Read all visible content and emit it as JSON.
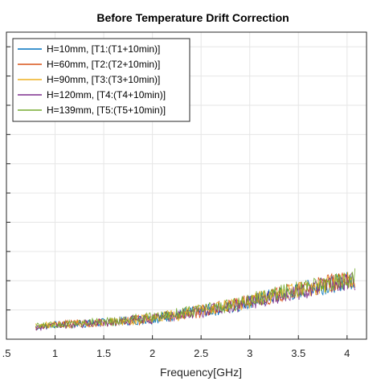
{
  "chart_data": {
    "type": "line",
    "title": "Before Temperature Drift Correction",
    "xlabel": "Frequency[GHz]",
    "ylabel": "",
    "xlim": [
      0.5,
      4.2
    ],
    "ylim": [
      0,
      10.5
    ],
    "xticks": [
      ".5",
      "1",
      "1.5",
      "2",
      "2.5",
      "3",
      "3.5",
      "4"
    ],
    "xtick_values": [
      0.5,
      1,
      1.5,
      2,
      2.5,
      3,
      3.5,
      4
    ],
    "ytick_values": [
      1,
      2,
      3,
      4,
      5,
      6,
      7,
      8,
      9,
      10
    ],
    "grid": true,
    "legend_placement": "top-left",
    "series": [
      {
        "name": "H=10mm, [T1:(T1+10min)]",
        "color": "#0072bd",
        "x": [
          0.8,
          1.0,
          1.2,
          1.4,
          1.6,
          1.8,
          2.0,
          2.2,
          2.4,
          2.6,
          2.8,
          3.0,
          3.2,
          3.4,
          3.6,
          3.8,
          4.0,
          4.08
        ],
        "y": [
          0.4,
          0.5,
          0.5,
          0.55,
          0.6,
          0.65,
          0.7,
          0.8,
          0.9,
          1.0,
          1.1,
          1.3,
          1.45,
          1.55,
          1.75,
          1.85,
          2.0,
          2.05
        ]
      },
      {
        "name": "H=60mm, [T2:(T2+10min)]",
        "color": "#d95319",
        "x": [
          0.8,
          1.0,
          1.2,
          1.4,
          1.6,
          1.8,
          2.0,
          2.2,
          2.4,
          2.6,
          2.8,
          3.0,
          3.2,
          3.4,
          3.6,
          3.8,
          4.0,
          4.08
        ],
        "y": [
          0.4,
          0.5,
          0.55,
          0.55,
          0.6,
          0.65,
          0.7,
          0.8,
          0.9,
          1.0,
          1.15,
          1.3,
          1.45,
          1.6,
          1.75,
          1.9,
          2.0,
          2.1
        ]
      },
      {
        "name": "H=90mm, [T3:(T3+10min)]",
        "color": "#edb120",
        "x": [
          0.8,
          1.0,
          1.2,
          1.4,
          1.6,
          1.8,
          2.0,
          2.2,
          2.4,
          2.6,
          2.8,
          3.0,
          3.2,
          3.4,
          3.6,
          3.8,
          4.0,
          4.08
        ],
        "y": [
          0.45,
          0.5,
          0.5,
          0.55,
          0.6,
          0.65,
          0.75,
          0.8,
          0.9,
          1.05,
          1.15,
          1.3,
          1.5,
          1.6,
          1.75,
          1.9,
          2.0,
          2.1
        ]
      },
      {
        "name": "H=120mm, [T4:(T4+10min)]",
        "color": "#7e2f8e",
        "x": [
          0.8,
          1.0,
          1.2,
          1.4,
          1.6,
          1.8,
          2.0,
          2.2,
          2.4,
          2.6,
          2.8,
          3.0,
          3.2,
          3.4,
          3.6,
          3.8,
          4.0,
          4.08
        ],
        "y": [
          0.4,
          0.45,
          0.5,
          0.55,
          0.6,
          0.65,
          0.7,
          0.8,
          0.9,
          1.0,
          1.1,
          1.25,
          1.4,
          1.55,
          1.7,
          1.85,
          1.95,
          2.0
        ]
      },
      {
        "name": "H=139mm, [T5:(T5+10min)]",
        "color": "#77ac30",
        "x": [
          0.8,
          1.0,
          1.2,
          1.4,
          1.6,
          1.8,
          2.0,
          2.2,
          2.4,
          2.6,
          2.8,
          3.0,
          3.2,
          3.4,
          3.6,
          3.8,
          4.0,
          4.08
        ],
        "y": [
          0.45,
          0.5,
          0.55,
          0.6,
          0.6,
          0.7,
          0.75,
          0.85,
          0.95,
          1.05,
          1.15,
          1.35,
          1.5,
          1.65,
          1.8,
          1.9,
          2.05,
          2.1
        ]
      }
    ]
  }
}
